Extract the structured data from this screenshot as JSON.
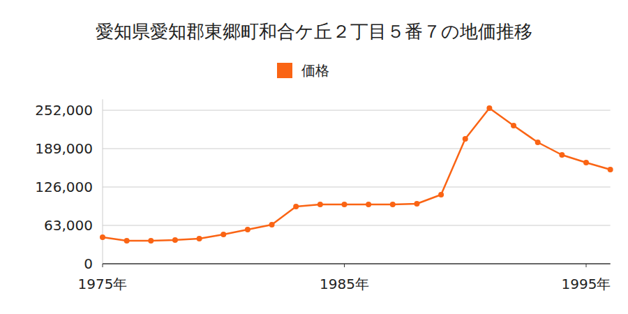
{
  "chart_data": {
    "type": "line",
    "title": "愛知県愛知郡東郷町和合ケ丘２丁目５番７の地価推移",
    "x": [
      1975,
      1976,
      1977,
      1978,
      1979,
      1980,
      1981,
      1982,
      1983,
      1984,
      1985,
      1986,
      1987,
      1988,
      1989,
      1990,
      1991,
      1992,
      1993,
      1994,
      1995,
      1996
    ],
    "series": [
      {
        "name": "価格",
        "color": "#fa6414",
        "marker": "circle",
        "values": [
          43500,
          37800,
          37800,
          39000,
          41200,
          48100,
          56100,
          64100,
          93900,
          97400,
          97400,
          97400,
          97400,
          98500,
          113400,
          205000,
          255400,
          226800,
          199300,
          178700,
          166100,
          154600
        ]
      }
    ],
    "xlim": [
      1975,
      1996
    ],
    "xticks": [
      {
        "value": 1975,
        "label": "1975年"
      },
      {
        "value": 1985,
        "label": "1985年"
      },
      {
        "value": 1995,
        "label": "1995年"
      }
    ],
    "ylim": [
      0,
      270000
    ],
    "yticks": [
      0,
      {
        "value": 63000,
        "label": "63,000"
      },
      {
        "value": 126000,
        "label": "126,000"
      },
      {
        "value": 189000,
        "label": "189,000"
      },
      {
        "value": 252000,
        "label": "252,000"
      }
    ],
    "grid": true,
    "legend": "top"
  }
}
